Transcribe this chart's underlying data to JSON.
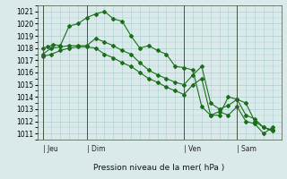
{
  "background_color": "#daeaea",
  "grid_color": "#aacece",
  "line_color": "#1a6e1a",
  "marker_color": "#1a6e1a",
  "xlabel": "Pression niveau de la mer( hPa )",
  "ylim": [
    1010.5,
    1021.5
  ],
  "yticks": [
    1011,
    1012,
    1013,
    1014,
    1015,
    1016,
    1017,
    1018,
    1019,
    1020,
    1021
  ],
  "day_labels": [
    "Jeu",
    "Dim",
    "Ven",
    "Sam"
  ],
  "day_positions": [
    0.0,
    2.5,
    8.0,
    11.0
  ],
  "vline_x": [
    0.0,
    2.5,
    8.0,
    11.0
  ],
  "series1_x": [
    0.0,
    0.3,
    0.6,
    1.0,
    1.5,
    2.0,
    2.5,
    3.0,
    3.5,
    4.0,
    4.5,
    5.0,
    5.5,
    6.0,
    6.5,
    7.0,
    7.5,
    8.0,
    8.5,
    9.0,
    9.5,
    10.0,
    10.5,
    11.0,
    11.5,
    12.0,
    12.5,
    13.0
  ],
  "series1_y": [
    1018.0,
    1018.1,
    1018.3,
    1018.2,
    1019.8,
    1020.0,
    1020.5,
    1020.8,
    1021.0,
    1020.4,
    1020.2,
    1019.0,
    1018.0,
    1018.2,
    1017.8,
    1017.5,
    1016.5,
    1016.4,
    1016.2,
    1013.2,
    1012.5,
    1012.5,
    1014.0,
    1013.8,
    1013.5,
    1012.0,
    1011.5,
    1011.2
  ],
  "series2_x": [
    0.0,
    0.5,
    1.0,
    1.5,
    2.0,
    2.5,
    3.0,
    3.5,
    4.0,
    4.5,
    5.0,
    5.5,
    6.0,
    6.5,
    7.0,
    7.5,
    8.0,
    8.5,
    9.0,
    9.5,
    10.0,
    10.5,
    11.0,
    11.5,
    12.0,
    12.5,
    13.0
  ],
  "series2_y": [
    1017.5,
    1018.0,
    1018.1,
    1018.2,
    1018.2,
    1018.2,
    1018.8,
    1018.5,
    1018.2,
    1017.8,
    1017.5,
    1016.8,
    1016.2,
    1015.8,
    1015.5,
    1015.2,
    1015.0,
    1015.8,
    1016.5,
    1013.5,
    1013.0,
    1013.3,
    1013.8,
    1012.5,
    1012.2,
    1011.5,
    1011.3
  ],
  "series3_x": [
    0.0,
    0.5,
    1.0,
    1.5,
    2.0,
    2.5,
    3.0,
    3.5,
    4.0,
    4.5,
    5.0,
    5.5,
    6.0,
    6.5,
    7.0,
    7.5,
    8.0,
    8.5,
    9.0,
    9.5,
    10.0,
    10.5,
    11.0,
    11.5,
    12.0,
    12.5,
    13.0
  ],
  "series3_y": [
    1017.3,
    1017.5,
    1017.8,
    1018.0,
    1018.1,
    1018.1,
    1018.0,
    1017.5,
    1017.2,
    1016.8,
    1016.5,
    1016.0,
    1015.5,
    1015.2,
    1014.8,
    1014.5,
    1014.2,
    1015.0,
    1015.5,
    1012.5,
    1012.8,
    1012.5,
    1013.2,
    1012.0,
    1011.8,
    1011.0,
    1011.5
  ],
  "xlim": [
    -0.3,
    13.5
  ],
  "xlabel_fontsize": 6.5,
  "tick_fontsize": 5.5,
  "linewidth": 0.8,
  "markersize": 2.0
}
